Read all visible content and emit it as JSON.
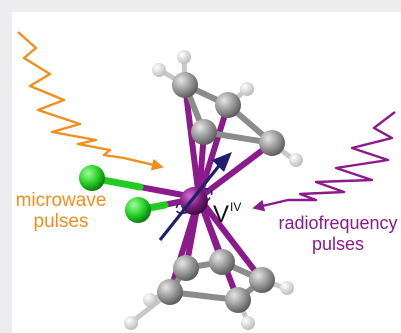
{
  "labels": {
    "microwave_line1": "microwave",
    "microwave_line2": "pulses",
    "radiofrequency_line1": "radiofrequency",
    "radiofrequency_line2": "pulses",
    "metal_symbol": "V",
    "metal_oxidation_state": "IV"
  },
  "colors": {
    "microwave": "#f28e1c",
    "radiofrequency": "#8d1a8d",
    "vanadium": "#7a1a7a",
    "chlorine": "#22cc22",
    "carbon": "#8c8c8c",
    "hydrogen": "#f2f2f2",
    "spin_arrow": "#1f1f6e"
  }
}
